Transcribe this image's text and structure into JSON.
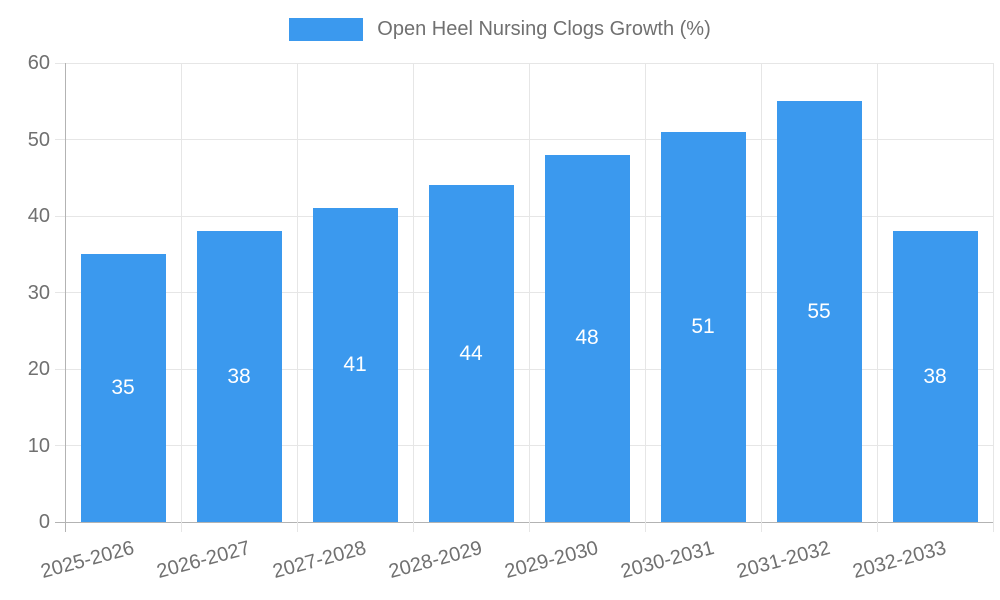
{
  "chart_data": {
    "type": "bar",
    "title": "Open Heel Nursing Clogs Growth (%)",
    "legend": {
      "label": "Open Heel Nursing Clogs Growth (%)",
      "position": "top"
    },
    "categories": [
      "2025-2026",
      "2026-2027",
      "2027-2028",
      "2028-2029",
      "2029-2030",
      "2030-2031",
      "2031-2032",
      "2032-2033"
    ],
    "values": [
      35,
      38,
      41,
      44,
      48,
      51,
      55,
      38
    ],
    "xlabel": "",
    "ylabel": "",
    "ylim": [
      0,
      60
    ],
    "yticks": [
      0,
      10,
      20,
      30,
      40,
      50,
      60
    ],
    "grid": true,
    "x_label_rotation_deg": -15,
    "colors": {
      "bar": "#3B99EE",
      "bar_value_label": "#ffffff",
      "tick_text": "#707070",
      "legend_text": "#707070",
      "gridline": "#e6e6e6",
      "axis_zero_line": "#b3b3b3",
      "background": "#ffffff"
    }
  }
}
